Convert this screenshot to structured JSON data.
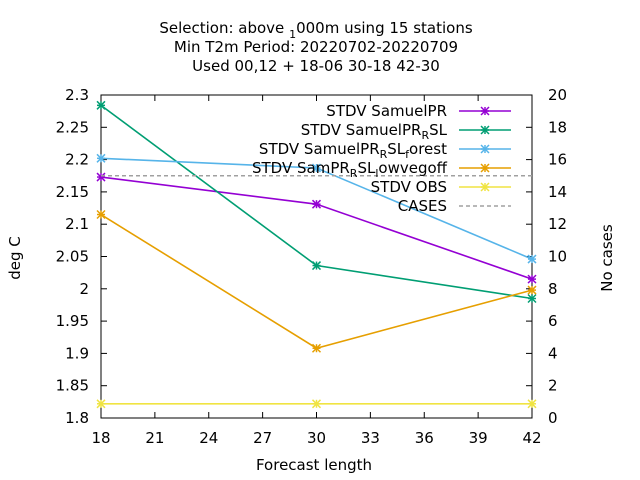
{
  "chart_data": {
    "type": "line",
    "title_lines": [
      "Selection: above 1000m using    15 stations",
      "Min T2m   Period: 20220702-20220709",
      "Used  00,12  + 18-06 30-18 42-30"
    ],
    "xlabel": "Forecast length",
    "ylabel": "deg C",
    "y2label": "No cases",
    "xlim": [
      18,
      42
    ],
    "ylim": [
      1.8,
      2.3
    ],
    "y2lim": [
      0,
      20
    ],
    "x_ticks": [
      "18",
      "21",
      "24",
      "27",
      "30",
      "33",
      "36",
      "39",
      "42"
    ],
    "y_ticks": [
      "1.8",
      "1.85",
      "1.9",
      "1.95",
      "2",
      "2.05",
      "2.1",
      "2.15",
      "2.2",
      "2.25",
      "2.3"
    ],
    "y2_ticks": [
      "0",
      "2",
      "4",
      "6",
      "8",
      "10",
      "12",
      "14",
      "16",
      "18",
      "20"
    ],
    "grid": false,
    "legend_position": "top-right",
    "series": [
      {
        "name": "STDV SamuelPR",
        "color": "#9400d3",
        "x": [
          18,
          30,
          42
        ],
        "y": [
          2.173,
          2.131,
          2.015
        ]
      },
      {
        "name": "STDV SamuelPR_RSL",
        "color": "#009e73",
        "x": [
          18,
          30,
          42
        ],
        "y": [
          2.284,
          2.036,
          1.985
        ]
      },
      {
        "name": "STDV SamuelPR_RSL_forest",
        "color": "#56b4e9",
        "x": [
          18,
          30,
          42
        ],
        "y": [
          2.202,
          2.187,
          2.046
        ]
      },
      {
        "name": "STDV SamPR_RSL_lowvegoff",
        "color": "#e69f00",
        "x": [
          18,
          30,
          42
        ],
        "y": [
          2.115,
          1.908,
          1.998
        ]
      },
      {
        "name": "STDV OBS",
        "color": "#f0e442",
        "x": [
          18,
          30,
          42
        ],
        "y": [
          1.822,
          1.822,
          1.822
        ]
      },
      {
        "name": "CASES",
        "color": "#a0a0a0",
        "dashed": true,
        "axis": "y2",
        "x": [
          18,
          30,
          42
        ],
        "y": [
          15,
          15,
          15
        ]
      }
    ]
  }
}
